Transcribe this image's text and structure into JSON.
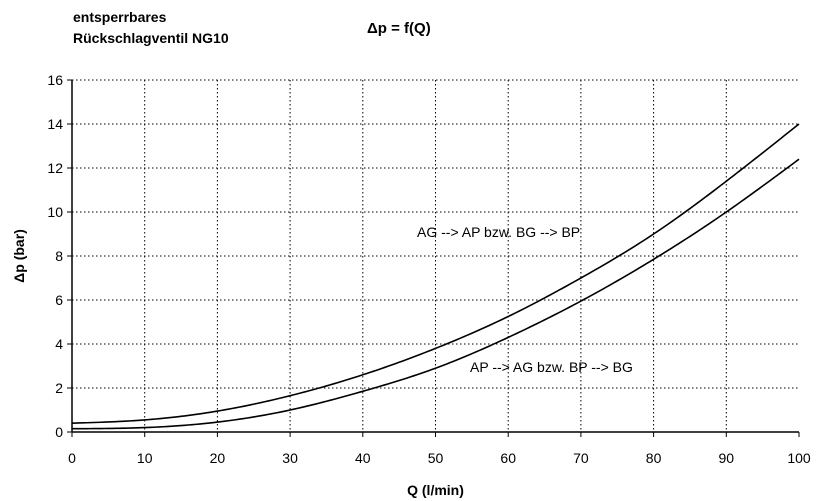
{
  "header": {
    "title_line1": "entsperrbares",
    "title_line2": "Rückschlagventil NG10",
    "formula": "Δp = f(Q)"
  },
  "chart_data": {
    "type": "line",
    "xlabel": "Q (l/min)",
    "ylabel": "Δp (bar)",
    "xlim": [
      0,
      100
    ],
    "ylim": [
      0,
      16
    ],
    "xticks": [
      0,
      10,
      20,
      30,
      40,
      50,
      60,
      70,
      80,
      90,
      100
    ],
    "yticks": [
      0,
      2,
      4,
      6,
      8,
      10,
      12,
      14,
      16
    ],
    "grid": true,
    "series": [
      {
        "name": "AG --> AP bzw. BG --> BP",
        "x": [
          0,
          10,
          20,
          30,
          40,
          50,
          60,
          70,
          80,
          90,
          100
        ],
        "y": [
          0.4,
          0.55,
          0.95,
          1.65,
          2.6,
          3.8,
          5.25,
          7.0,
          9.0,
          11.4,
          14.0
        ]
      },
      {
        "name": "AP --> AG bzw. BP --> BG",
        "x": [
          0,
          10,
          20,
          30,
          40,
          50,
          60,
          70,
          80,
          90,
          100
        ],
        "y": [
          0.15,
          0.2,
          0.45,
          1.0,
          1.85,
          2.9,
          4.3,
          5.95,
          7.85,
          10.0,
          12.4
        ]
      }
    ]
  }
}
